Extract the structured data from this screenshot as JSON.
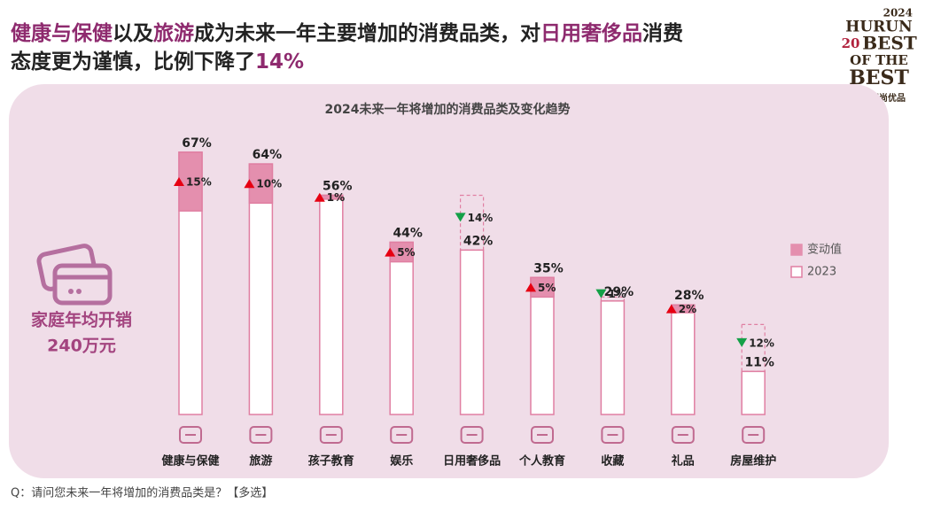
{
  "headline": [
    [
      {
        "text": "健康与保健",
        "highlight": true
      },
      {
        "text": "以及",
        "highlight": false
      },
      {
        "text": "旅游",
        "highlight": true
      },
      {
        "text": "成为未来一年主要增加的消费品类，对",
        "highlight": false
      },
      {
        "text": "日用奢侈品",
        "highlight": true
      },
      {
        "text": "消费",
        "highlight": false
      }
    ],
    [
      {
        "text": "态度更为谨慎，比例下降了",
        "highlight": false
      },
      {
        "text": "14%",
        "highlight": true
      }
    ]
  ],
  "logo": {
    "year": "2024",
    "brand": "HURUN",
    "mark": "20",
    "line1": "BEST",
    "line2": "OF THE",
    "line3": "BEST",
    "caption": "胡润至尚优品"
  },
  "side": {
    "label": "家庭年均开销",
    "value": "240万元"
  },
  "footnote": "Q：请问您未来一年将增加的消费品类是？【多选】",
  "chart_data": {
    "type": "change_bar",
    "title": "2024未来一年将增加的消费品类及变化趋势",
    "categories": [
      "健康与保健",
      "旅游",
      "孩子教育",
      "娱乐",
      "日用奢侈品",
      "个人教育",
      "收藏",
      "礼品",
      "房屋维护"
    ],
    "values": [
      67,
      64,
      56,
      44,
      42,
      35,
      29,
      28,
      11
    ],
    "value_labels": [
      "67%",
      "64%",
      "56%",
      "44%",
      "42%",
      "35%",
      "29%",
      "28%",
      "11%"
    ],
    "changes": [
      15,
      10,
      1,
      5,
      -14,
      5,
      -1,
      2,
      -12
    ],
    "change_labels": [
      "15%",
      "10%",
      "1%",
      "5%",
      "14%",
      "5%",
      "1%",
      "2%",
      "12%"
    ],
    "legend": [
      {
        "name": "变动值",
        "color": "#e48fae"
      },
      {
        "name": "2023",
        "color": "#e07fa2"
      }
    ],
    "up_color": "#e60012",
    "down_color": "#14a047"
  }
}
